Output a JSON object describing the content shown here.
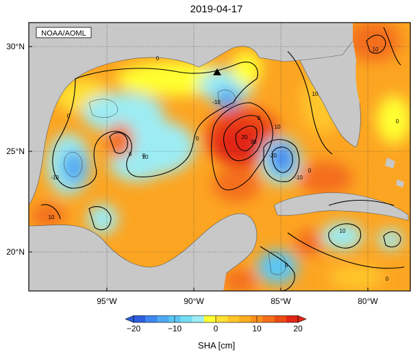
{
  "title": "2019-04-17",
  "credit": "NOAA/AOML",
  "lat_labels": [
    "30°N",
    "25°N",
    "20°N"
  ],
  "lon_labels": [
    "95°W",
    "90°W",
    "85°W",
    "80°W"
  ],
  "colorbar": {
    "label": "SHA [cm]",
    "ticks": [
      "−20",
      "−10",
      "0",
      "10",
      "20"
    ],
    "range": [
      -20,
      20
    ],
    "colors": [
      "#2f5fe0",
      "#3f86ee",
      "#4fa9f2",
      "#5cc6f3",
      "#74dcf3",
      "#9decf3",
      "#ffff33",
      "#ffe033",
      "#ffc629",
      "#ffac20",
      "#fb8f1d",
      "#f46e1a",
      "#ec4b17",
      "#e22616"
    ]
  },
  "contour_labels": [
    "0",
    "0",
    "0",
    "0",
    "0",
    "0",
    "0",
    "-10",
    "-10",
    "-10",
    "-20",
    "10",
    "10",
    "10",
    "20",
    "30",
    "10",
    "10",
    "0",
    "0",
    "0",
    "10"
  ],
  "marker": "triangle",
  "colors": {
    "land": "#c8c8c8",
    "ocean_base": "#fca522",
    "grid": "#333333"
  }
}
